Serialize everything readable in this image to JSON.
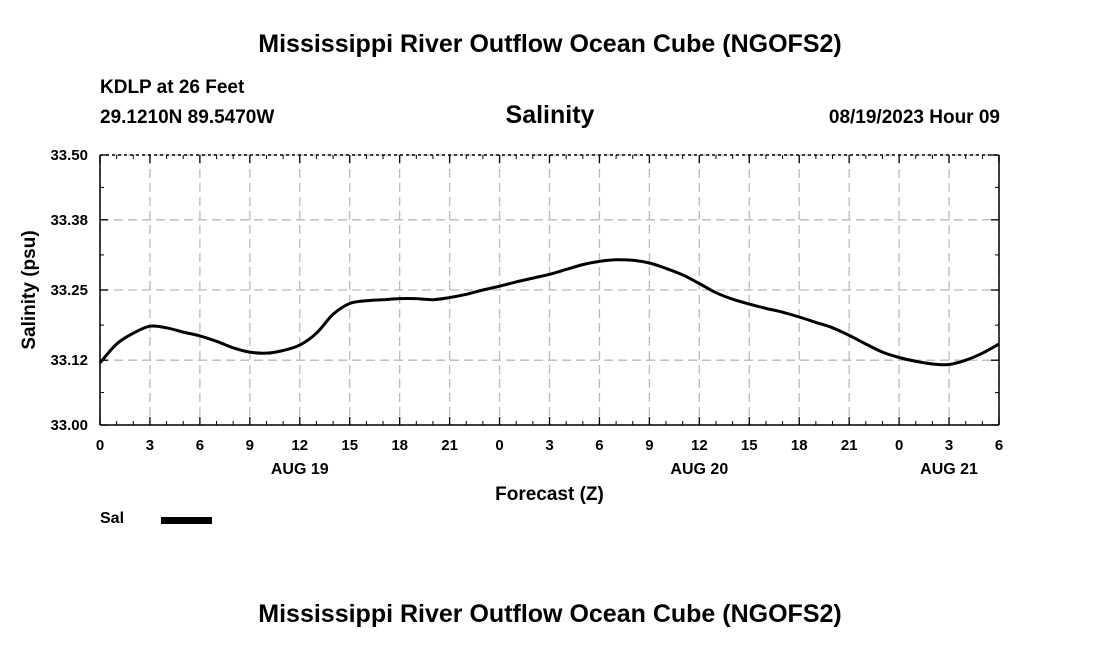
{
  "header": {
    "title": "Mississippi River Outflow Ocean Cube (NGOFS2)",
    "station": "KDLP at 26 Feet",
    "coords": "29.1210N  89.5470W",
    "variable": "Salinity",
    "run_time": "08/19/2023 Hour 09"
  },
  "footer": {
    "title": "Mississippi River Outflow Ocean Cube (NGOFS2)"
  },
  "legend": {
    "label": "Sal"
  },
  "chart_data": {
    "type": "line",
    "xlabel": "Forecast (Z)",
    "ylabel": "Salinity (psu)",
    "ylim": [
      33.0,
      33.5
    ],
    "xlim": [
      0,
      54
    ],
    "grid": true,
    "legend_placement": "bottom-left",
    "y_ticks": [
      "33.00",
      "33.12",
      "33.25",
      "33.38",
      "33.50"
    ],
    "x_tick_labels": [
      "0",
      "3",
      "6",
      "9",
      "12",
      "15",
      "18",
      "21",
      "0",
      "3",
      "6",
      "9",
      "12",
      "15",
      "18",
      "21",
      "0",
      "3",
      "6"
    ],
    "date_labels": [
      {
        "label": "AUG 19",
        "hour": 12
      },
      {
        "label": "AUG 20",
        "hour": 36
      },
      {
        "label": "AUG 21",
        "hour": 51
      }
    ],
    "series": [
      {
        "name": "Sal",
        "color": "#000000",
        "x": [
          0,
          1,
          2,
          3,
          4,
          5,
          6,
          7,
          8,
          9,
          10,
          11,
          12,
          13,
          14,
          15,
          16,
          17,
          18,
          19,
          20,
          21,
          22,
          23,
          24,
          25,
          26,
          27,
          28,
          29,
          30,
          31,
          32,
          33,
          34,
          35,
          36,
          37,
          38,
          39,
          40,
          41,
          42,
          43,
          44,
          45,
          46,
          47,
          48,
          49,
          50,
          51,
          52,
          53,
          54
        ],
        "values": [
          33.115,
          33.15,
          33.17,
          33.183,
          33.18,
          33.172,
          33.165,
          33.155,
          33.143,
          33.135,
          33.133,
          33.138,
          33.148,
          33.17,
          33.205,
          33.225,
          33.23,
          33.232,
          33.234,
          33.234,
          33.232,
          33.236,
          33.242,
          33.25,
          33.257,
          33.265,
          33.272,
          33.279,
          33.288,
          33.297,
          33.303,
          33.306,
          33.305,
          33.3,
          33.29,
          33.278,
          33.262,
          33.245,
          33.233,
          33.224,
          33.216,
          33.209,
          33.2,
          33.19,
          33.18,
          33.166,
          33.15,
          33.135,
          33.125,
          33.118,
          33.113,
          33.112,
          33.12,
          33.133,
          33.15
        ]
      }
    ]
  }
}
